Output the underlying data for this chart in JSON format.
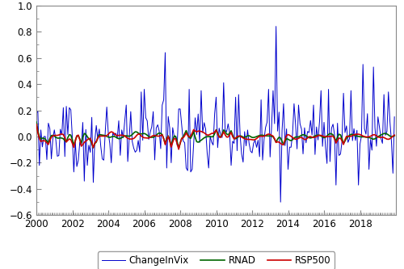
{
  "x_tick_years": [
    2000,
    2002,
    2004,
    2006,
    2008,
    2010,
    2012,
    2014,
    2016,
    2018
  ],
  "ylim": [
    -0.6,
    1.0
  ],
  "yticks": [
    -0.6,
    -0.4,
    -0.2,
    0.0,
    0.2,
    0.4,
    0.6,
    0.8,
    1.0
  ],
  "vix_color": "#0000CC",
  "rsp500_color": "#CC0000",
  "rnad_color": "#006600",
  "legend_labels": [
    "ChangeInVix",
    "RSP500",
    "RNAD"
  ],
  "linewidth_vix": 0.7,
  "linewidth_rsp500": 1.2,
  "linewidth_rnad": 1.2,
  "background_color": "#FFFFFF",
  "spine_color": "#888888",
  "tick_color": "#888888",
  "label_fontsize": 8.5,
  "legend_fontsize": 8.5
}
